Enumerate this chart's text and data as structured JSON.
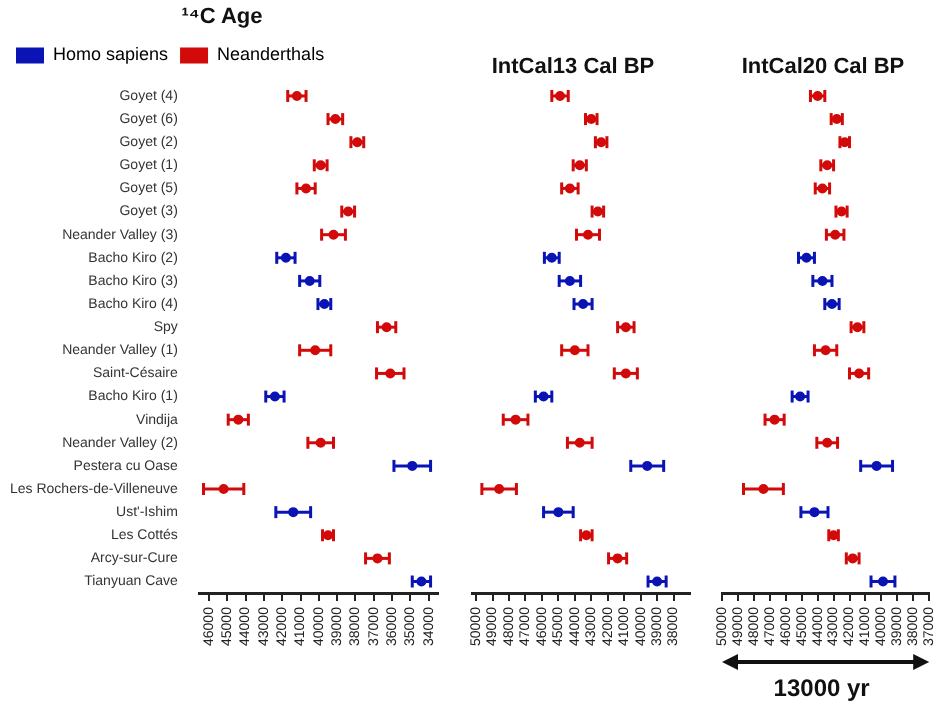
{
  "chart_data": [
    {
      "type": "scatter",
      "title": "¹⁴C Age",
      "orientation": "horizontal",
      "marker": "circle",
      "legend": "top left",
      "categories": [
        "Goyet (4)",
        "Goyet (6)",
        "Goyet (2)",
        "Goyet (1)",
        "Goyet (5)",
        "Goyet (3)",
        "Neander Valley (3)",
        "Bacho Kiro (2)",
        "Bacho Kiro (3)",
        "Bacho Kiro (4)",
        "Spy",
        "Neander Valley (1)",
        "Saint-Césaire",
        "Bacho Kiro (1)",
        "Vindija",
        "Neander Valley (2)",
        "Pestera cu Oase",
        "Les Rochers-de-Villeneuve",
        "Ust'-Ishim",
        "Les Cottés",
        "Arcy-sur-Cure",
        "Tianyuan Cave"
      ],
      "xlim": [
        46500,
        33500
      ],
      "xticks": [
        46000,
        45000,
        44000,
        43000,
        42000,
        41000,
        40000,
        39000,
        38000,
        37000,
        36000,
        35000,
        34000
      ],
      "series": [
        {
          "name": "Homo sapiens",
          "color": "#0a14b4",
          "values": [
            null,
            null,
            null,
            null,
            null,
            null,
            null,
            41800,
            40500,
            39700,
            null,
            null,
            null,
            42400,
            null,
            null,
            34900,
            null,
            41400,
            null,
            null,
            34400
          ],
          "errors": [
            null,
            null,
            null,
            null,
            null,
            null,
            null,
            500,
            550,
            350,
            null,
            null,
            null,
            500,
            null,
            null,
            1000,
            null,
            950,
            null,
            null,
            500
          ]
        },
        {
          "name": "Neanderthals",
          "color": "#d20a0a",
          "values": [
            41200,
            39100,
            37900,
            39900,
            40700,
            38400,
            39200,
            null,
            null,
            null,
            36300,
            40200,
            36100,
            null,
            44400,
            39900,
            null,
            45200,
            null,
            39500,
            36800,
            null
          ],
          "errors": [
            500,
            400,
            350,
            350,
            500,
            350,
            650,
            null,
            null,
            null,
            500,
            850,
            750,
            null,
            550,
            700,
            null,
            1100,
            null,
            300,
            650,
            null
          ]
        }
      ]
    },
    {
      "type": "scatter",
      "title": "IntCal13 Cal BP",
      "orientation": "horizontal",
      "marker": "circle",
      "tick_labels": "x",
      "categories": [
        null,
        null,
        null,
        null,
        null,
        null,
        null,
        null,
        null,
        null,
        null,
        null,
        null,
        null,
        null,
        null,
        null,
        null,
        null,
        null,
        null,
        null
      ],
      "xlim": [
        50250,
        37000
      ],
      "xticks": [
        50000,
        49000,
        48000,
        47000,
        46000,
        45000,
        44000,
        43000,
        42000,
        41000,
        40000,
        39000,
        38000
      ],
      "series": [
        {
          "color": "#0a14b4",
          "values": [
            null,
            null,
            null,
            null,
            null,
            null,
            null,
            45400,
            44300,
            43500,
            null,
            null,
            null,
            45900,
            null,
            null,
            39600,
            null,
            45000,
            null,
            null,
            39000
          ],
          "errors": [
            null,
            null,
            null,
            null,
            null,
            null,
            null,
            450,
            650,
            550,
            null,
            null,
            null,
            500,
            null,
            null,
            1000,
            null,
            900,
            null,
            null,
            550
          ]
        },
        {
          "color": "#d20a0a",
          "values": [
            44900,
            43000,
            42400,
            43700,
            44300,
            42600,
            43200,
            null,
            null,
            null,
            40900,
            44000,
            40900,
            null,
            47600,
            43700,
            null,
            48600,
            null,
            43300,
            41400,
            null
          ],
          "errors": [
            500,
            350,
            350,
            400,
            500,
            350,
            700,
            null,
            null,
            null,
            500,
            800,
            700,
            null,
            750,
            750,
            null,
            1050,
            null,
            350,
            550,
            null
          ]
        }
      ]
    },
    {
      "type": "scatter",
      "title": "IntCal20 Cal BP",
      "orientation": "horizontal",
      "marker": "circle",
      "tick_labels": "x",
      "annotations": [
        "13000 yr"
      ],
      "categories": [
        null,
        null,
        null,
        null,
        null,
        null,
        null,
        null,
        null,
        null,
        null,
        null,
        null,
        null,
        null,
        null,
        null,
        null,
        null,
        null,
        null,
        null
      ],
      "xlim": [
        50000,
        37000
      ],
      "xticks": [
        50000,
        49000,
        48000,
        47000,
        46000,
        45000,
        44000,
        43000,
        42000,
        41000,
        40000,
        39000,
        38000,
        37000
      ],
      "series": [
        {
          "color": "#0a14b4",
          "values": [
            null,
            null,
            null,
            null,
            null,
            null,
            null,
            44700,
            43700,
            43100,
            null,
            null,
            null,
            45100,
            null,
            null,
            40300,
            null,
            44200,
            null,
            null,
            39900
          ],
          "errors": [
            null,
            null,
            null,
            null,
            null,
            null,
            null,
            500,
            600,
            450,
            null,
            null,
            null,
            500,
            null,
            null,
            1000,
            null,
            850,
            null,
            null,
            750
          ]
        },
        {
          "color": "#d20a0a",
          "values": [
            44000,
            42800,
            42300,
            43400,
            43700,
            42500,
            42900,
            null,
            null,
            null,
            41500,
            43500,
            41400,
            null,
            46700,
            43400,
            null,
            47400,
            null,
            43000,
            41800,
            null
          ],
          "errors": [
            450,
            350,
            300,
            400,
            450,
            350,
            550,
            null,
            null,
            null,
            400,
            700,
            600,
            null,
            600,
            650,
            null,
            1250,
            null,
            300,
            400,
            null
          ]
        }
      ]
    }
  ]
}
